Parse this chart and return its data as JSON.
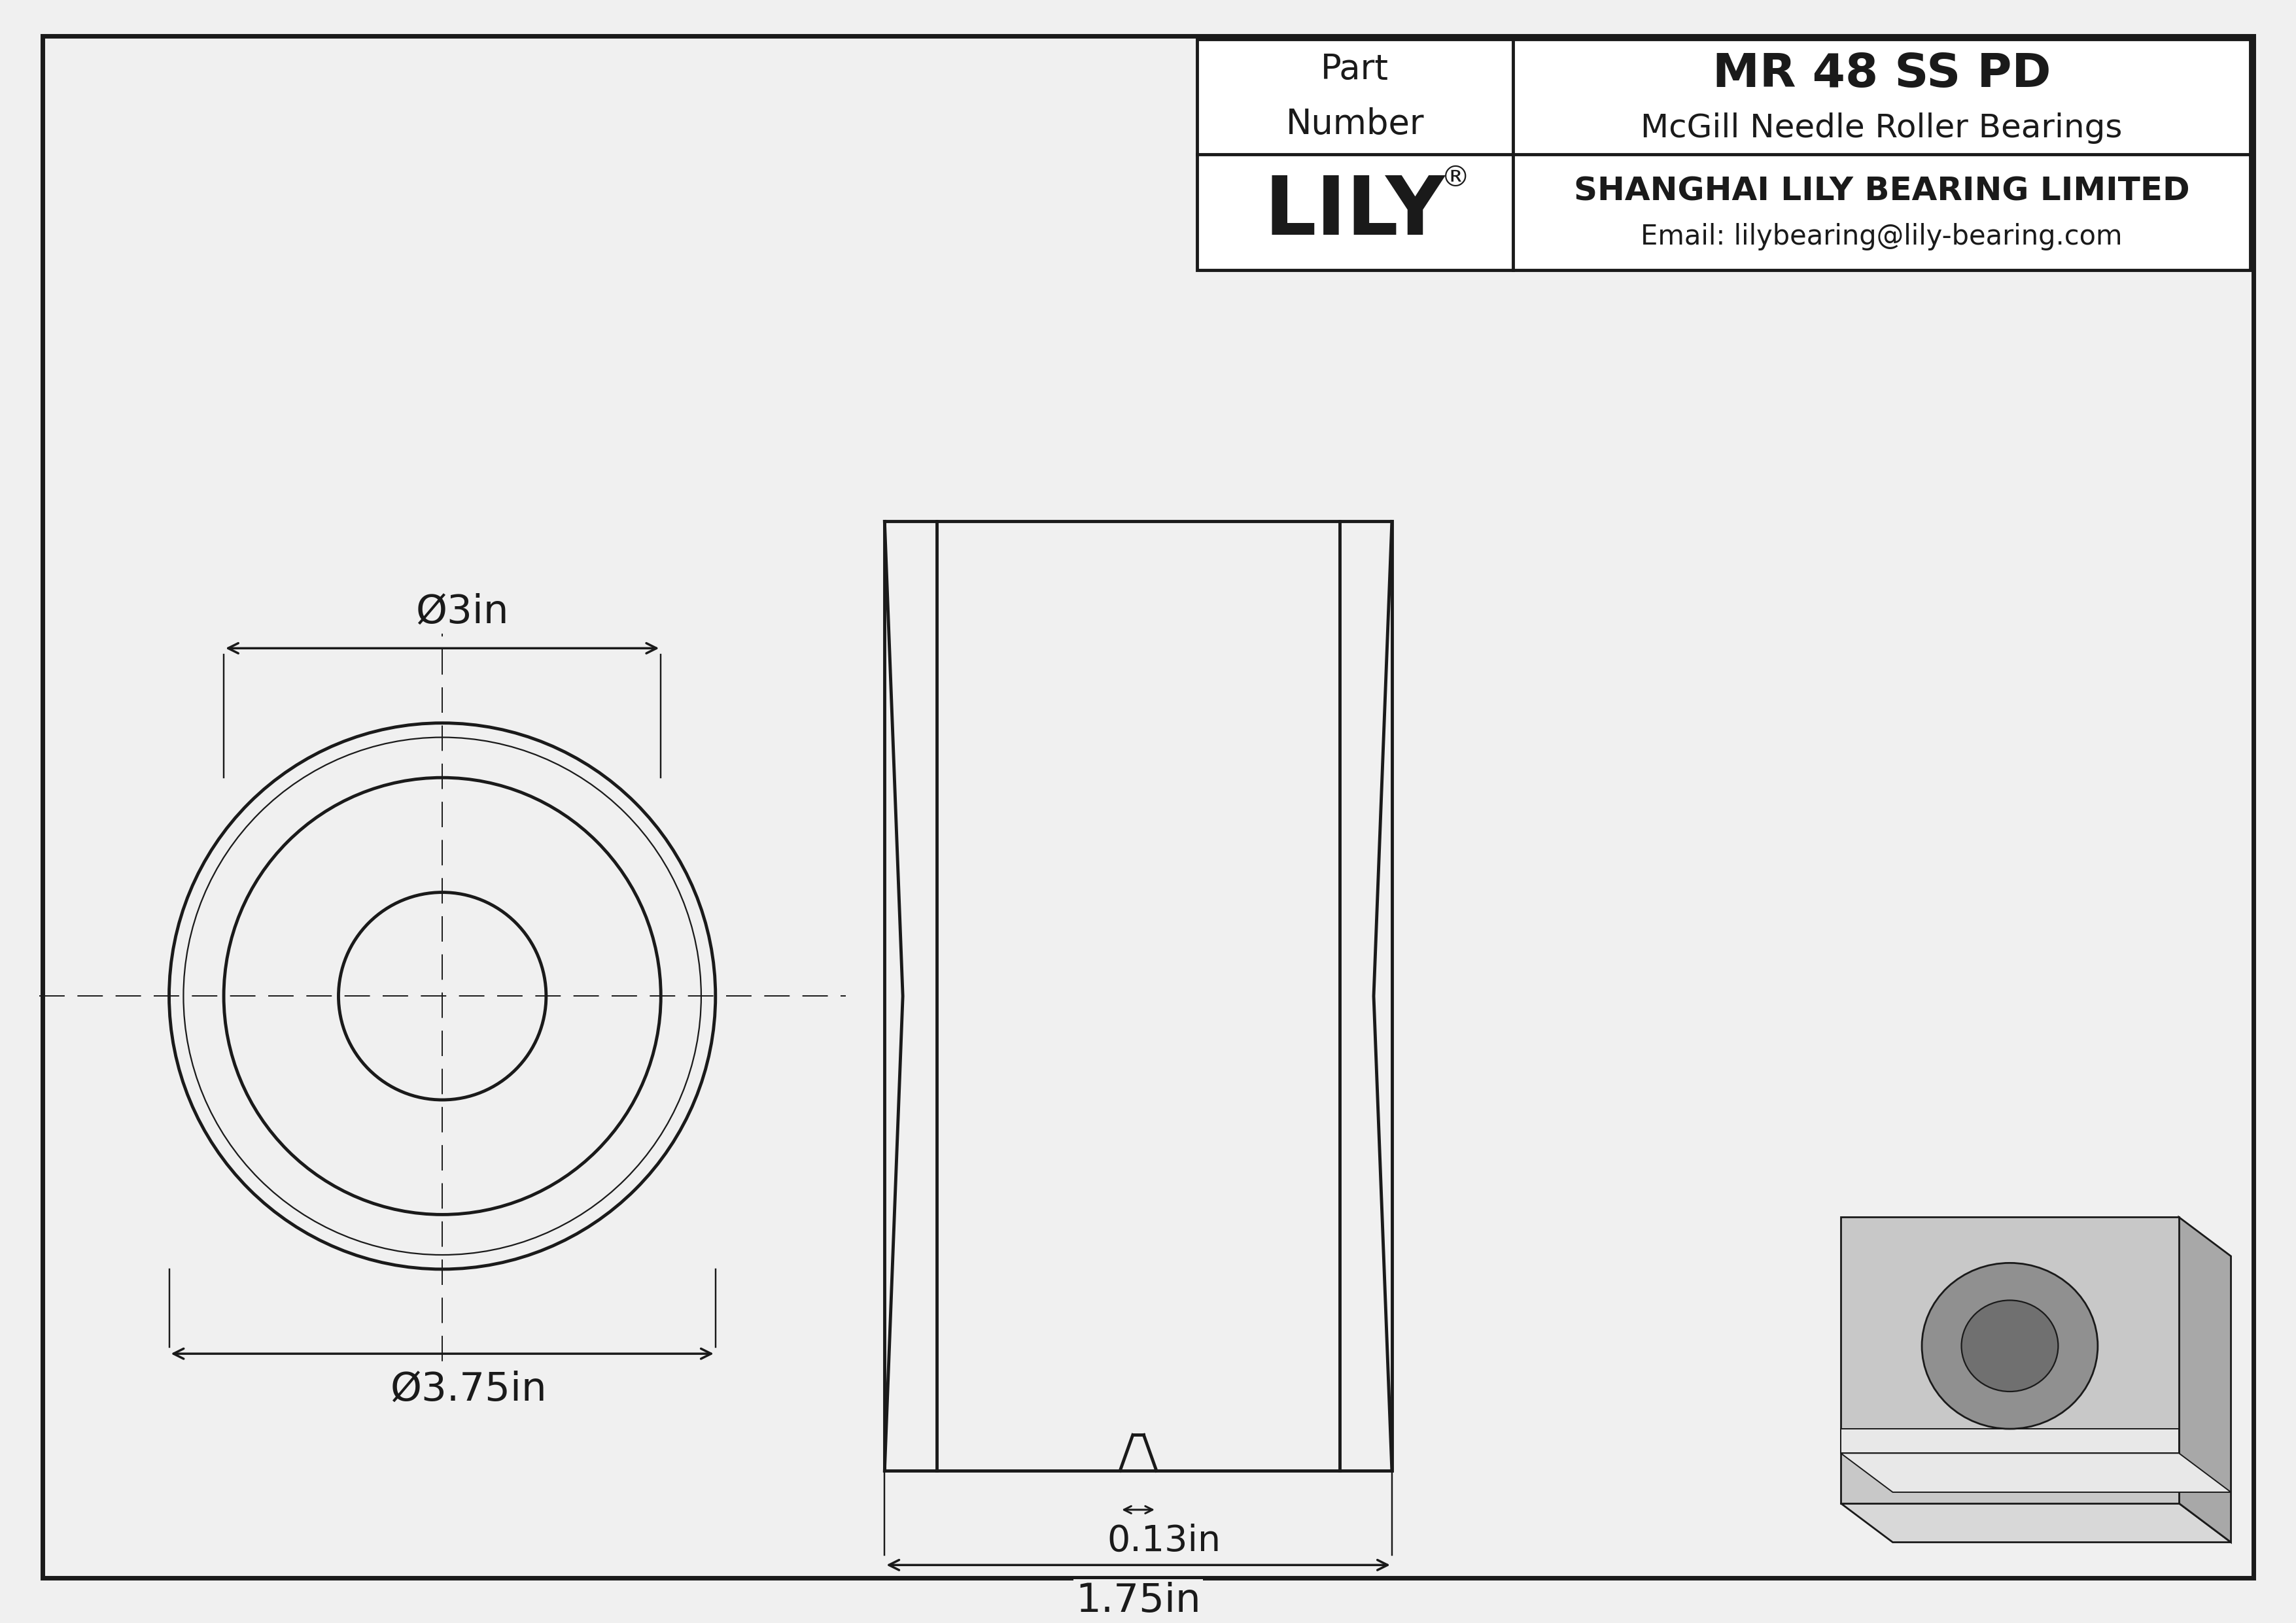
{
  "bg_color": "#f0f0f0",
  "line_color": "#1a1a1a",
  "fig_width": 35.1,
  "fig_height": 24.82,
  "title_company": "SHANGHAI LILY BEARING LIMITED",
  "title_email": "Email: lilybearing@lily-bearing.com",
  "part_number": "MR 48 SS PD",
  "part_series": "McGill Needle Roller Bearings",
  "brand_name": "LILY",
  "outer_dia_label": "Ø3.75in",
  "inner_dia_label": "Ø3in",
  "width_label": "1.75in",
  "groove_label": "0.13in",
  "iso_gray_body": "#c8c8c8",
  "iso_gray_top": "#d8d8d8",
  "iso_gray_dark": "#a8a8a8",
  "iso_gray_bore": "#909090",
  "iso_gray_bore_inner": "#707070",
  "iso_white_stripe": "#e8e8e8"
}
